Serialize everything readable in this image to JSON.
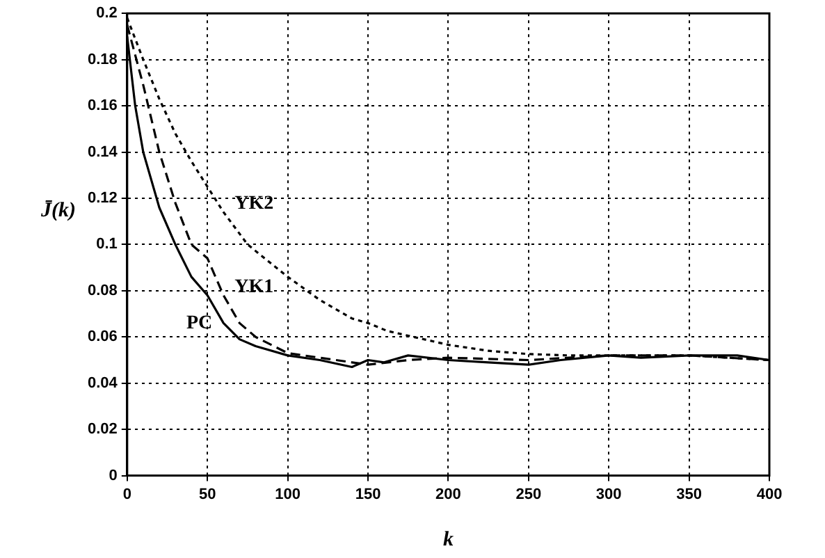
{
  "chart_data": {
    "type": "line",
    "xlabel": "k",
    "ylabel": "J̄(k)",
    "xlim": [
      0,
      400
    ],
    "xticks": [
      0,
      50,
      100,
      150,
      200,
      250,
      300,
      350,
      400
    ],
    "ylim": [
      0,
      0.2
    ],
    "yticks": [
      0,
      0.02,
      0.04,
      0.06,
      0.08,
      0.1,
      0.12,
      0.14,
      0.16,
      0.18,
      0.2
    ],
    "grid": true,
    "legend": false,
    "marker": "none",
    "series": [
      {
        "name": "PC",
        "color": "#000000",
        "line_style": "solid",
        "x": [
          0,
          5,
          10,
          20,
          30,
          40,
          50,
          60,
          70,
          80,
          100,
          120,
          140,
          150,
          160,
          175,
          200,
          225,
          250,
          270,
          300,
          320,
          350,
          380,
          400
        ],
        "values": [
          0.19,
          0.16,
          0.14,
          0.116,
          0.1,
          0.086,
          0.078,
          0.066,
          0.059,
          0.056,
          0.052,
          0.05,
          0.047,
          0.05,
          0.049,
          0.052,
          0.05,
          0.049,
          0.048,
          0.05,
          0.052,
          0.051,
          0.052,
          0.052,
          0.05
        ]
      },
      {
        "name": "YK1",
        "color": "#000000",
        "line_style": "dashed",
        "x": [
          0,
          10,
          20,
          30,
          40,
          50,
          60,
          70,
          80,
          100,
          120,
          140,
          150,
          175,
          200,
          250,
          275,
          300,
          350,
          400
        ],
        "values": [
          0.195,
          0.169,
          0.14,
          0.118,
          0.1,
          0.094,
          0.078,
          0.066,
          0.06,
          0.053,
          0.051,
          0.049,
          0.048,
          0.05,
          0.051,
          0.05,
          0.051,
          0.052,
          0.052,
          0.05
        ]
      },
      {
        "name": "YK2",
        "color": "#000000",
        "line_style": "dotted",
        "x": [
          0,
          10,
          20,
          30,
          40,
          50,
          60,
          75,
          100,
          120,
          140,
          150,
          162,
          200,
          225,
          250,
          275,
          300,
          350,
          400
        ],
        "values": [
          0.198,
          0.18,
          0.163,
          0.148,
          0.136,
          0.125,
          0.114,
          0.1,
          0.086,
          0.076,
          0.068,
          0.066,
          0.0626,
          0.0566,
          0.054,
          0.0526,
          0.052,
          0.052,
          0.052,
          0.05
        ]
      }
    ]
  }
}
